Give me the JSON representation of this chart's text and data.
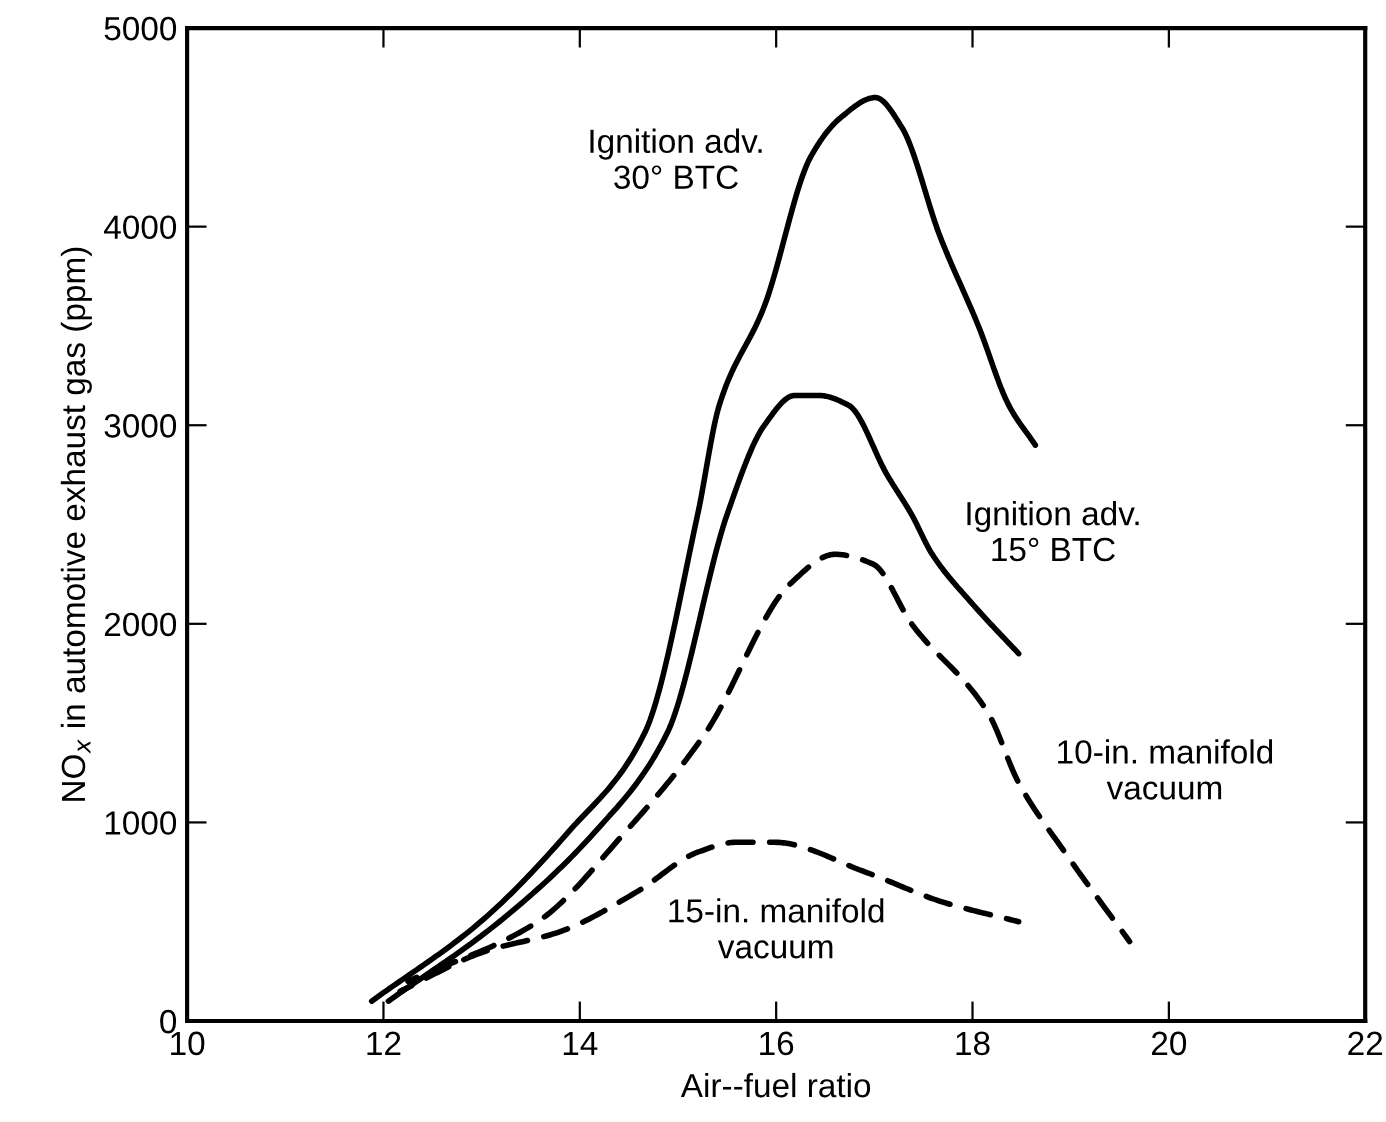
{
  "chart_data": {
    "type": "line",
    "xlabel": "Air--fuel ratio",
    "ylabel": "NO$_{x}$ in automotive exhaust gas (ppm)",
    "xlim": [
      10,
      22
    ],
    "xticks": [
      10,
      12,
      14,
      16,
      18,
      20,
      22
    ],
    "ylim": [
      0,
      5000
    ],
    "yticks": [
      0,
      1000,
      2000,
      3000,
      4000,
      5000
    ],
    "grid": false,
    "legend": false,
    "marker": "none",
    "series": [
      {
        "name": "Ignition adv.\n30° BTC",
        "color": "#000000",
        "line_style": "solid",
        "x": [
          11.88,
          12.99,
          13.88,
          14.66,
          15.2,
          15.42,
          15.88,
          16.35,
          16.66,
          17.01,
          17.28,
          17.67,
          18.06,
          18.37,
          18.64
        ],
        "values": [
          100,
          500,
          950,
          1450,
          2550,
          3100,
          3600,
          4350,
          4550,
          4650,
          4500,
          3950,
          3500,
          3100,
          2900
        ]
      },
      {
        "name": "Ignition adv.\n15° BTC",
        "color": "#000000",
        "line_style": "solid",
        "x": [
          12.05,
          13.18,
          14.15,
          14.89,
          15.5,
          15.88,
          16.19,
          16.43,
          16.74,
          17.13,
          17.38,
          17.59,
          18.0,
          18.47
        ],
        "values": [
          100,
          500,
          950,
          1450,
          2550,
          3000,
          3150,
          3150,
          3100,
          2750,
          2550,
          2350,
          2100,
          1850
        ]
      },
      {
        "name": "10-in. manifold\nvacuum",
        "color": "#000000",
        "line_style": "dashed",
        "x": [
          12.25,
          13.57,
          14.46,
          15.28,
          16.14,
          16.6,
          16.99,
          17.38,
          18.16,
          18.47,
          18.94,
          19.6
        ],
        "values": [
          200,
          500,
          950,
          1450,
          2200,
          2350,
          2300,
          2000,
          1550,
          1200,
          850,
          400
        ]
      },
      {
        "name": "15-in. manifold\nvacuum",
        "color": "#000000",
        "line_style": "dashed",
        "x": [
          12.17,
          13.03,
          13.8,
          14.58,
          15.2,
          15.59,
          15.98,
          16.91,
          17.69,
          18.47
        ],
        "values": [
          150,
          350,
          450,
          650,
          850,
          900,
          900,
          750,
          600,
          500
        ]
      }
    ]
  }
}
